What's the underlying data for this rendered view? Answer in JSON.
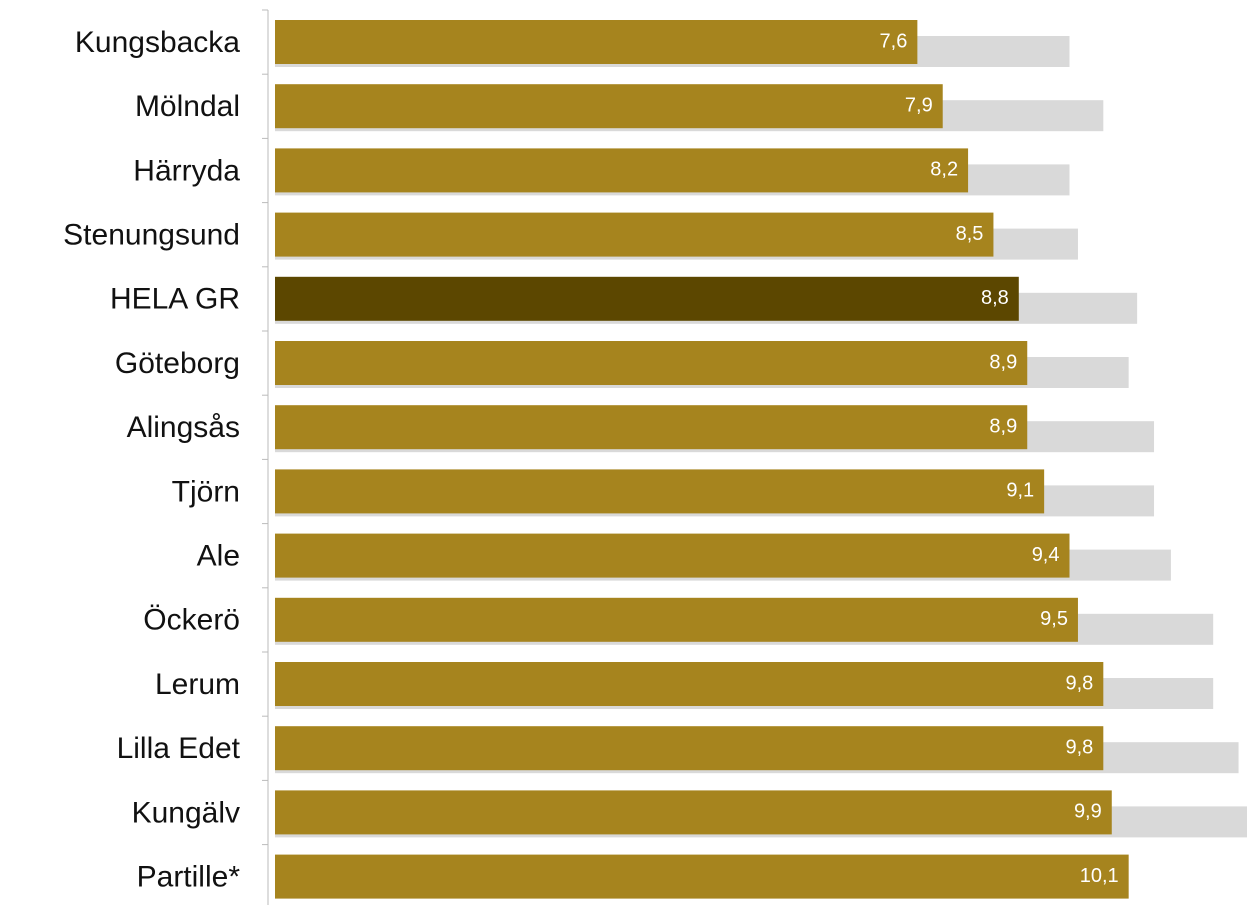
{
  "chart_data": {
    "type": "bar",
    "orientation": "horizontal",
    "categories": [
      "Kungsbacka",
      "Mölndal",
      "Härryda",
      "Stenungsund",
      "HELA GR",
      "Göteborg",
      "Alingsås",
      "Tjörn",
      "Ale",
      "Öckerö",
      "Lerum",
      "Lilla Edet",
      "Kungälv",
      "Partille*"
    ],
    "series": [
      {
        "color": "#a6841e",
        "colors": [
          "#a6841e",
          "#a6841e",
          "#a6841e",
          "#a6841e",
          "#5c4700",
          "#a6841e",
          "#a6841e",
          "#a6841e",
          "#a6841e",
          "#a6841e",
          "#a6841e",
          "#a6841e",
          "#a6841e",
          "#a6841e"
        ],
        "values": [
          7.6,
          7.9,
          8.2,
          8.5,
          8.8,
          8.9,
          8.9,
          9.1,
          9.4,
          9.5,
          9.8,
          9.8,
          9.9,
          10.1
        ],
        "value_labels": [
          "7,6",
          "7,9",
          "8,2",
          "8,5",
          "8,8",
          "8,9",
          "8,9",
          "9,1",
          "9,4",
          "9,5",
          "9,8",
          "9,8",
          "9,9",
          "10,1"
        ]
      },
      {
        "color": "#d9d9d9",
        "values": [
          9.4,
          9.8,
          9.4,
          9.5,
          10.2,
          10.1,
          10.4,
          10.4,
          10.6,
          11.1,
          11.1,
          11.4,
          11.5,
          null
        ]
      }
    ],
    "xlim": [
      0,
      11.5
    ]
  }
}
